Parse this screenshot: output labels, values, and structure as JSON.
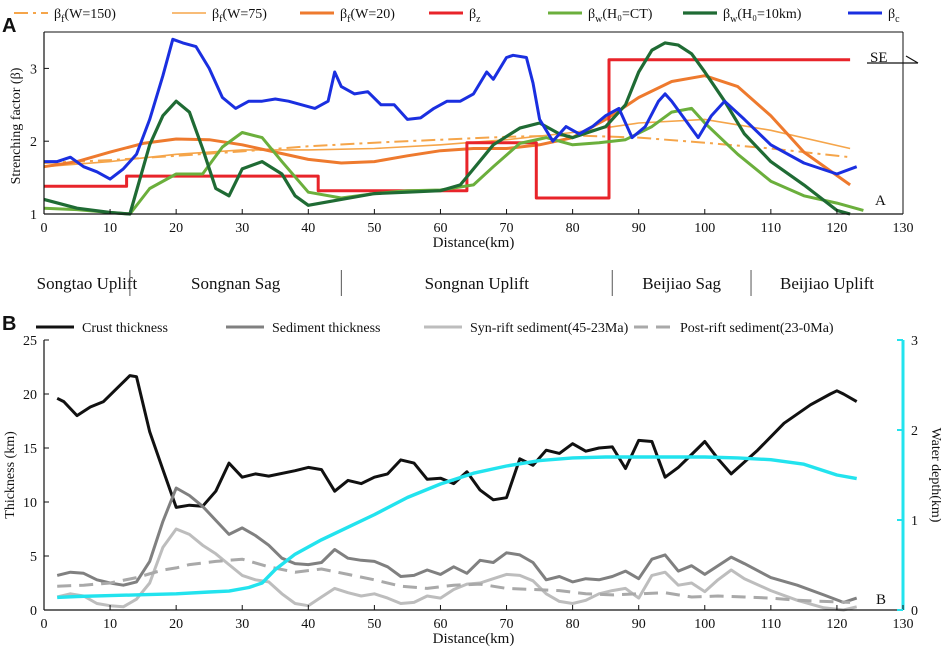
{
  "panel_a": {
    "label": "A",
    "corner_label": "A",
    "direction_label": "SE",
    "legend": [
      {
        "base": "β",
        "sub": "f",
        "rest": "(W=150)",
        "color": "#F5A54A",
        "dash": "14,5,3,5",
        "width": 2
      },
      {
        "base": "β",
        "sub": "f",
        "rest": "(W=75)",
        "color": "#F5A54A",
        "dash": "",
        "width": 1.6
      },
      {
        "base": "β",
        "sub": "f",
        "rest": "(W=20)",
        "color": "#EE7A2E",
        "dash": "",
        "width": 3
      },
      {
        "base": "β",
        "sub": "z",
        "rest": "",
        "color": "#E8242A",
        "dash": "",
        "width": 3
      },
      {
        "base": "β",
        "sub": "w",
        "rest": "(H₀=CT)",
        "color": "#6BAF3C",
        "dash": "",
        "width": 3
      },
      {
        "base": "β",
        "sub": "w",
        "rest": "(H₀=10km)",
        "color": "#1F6B34",
        "dash": "",
        "width": 3.2
      },
      {
        "base": "β",
        "sub": "c",
        "rest": "",
        "color": "#1A2FE0",
        "dash": "",
        "width": 3
      }
    ]
  },
  "regions": [
    {
      "name": "Songtao Uplift",
      "start": 0,
      "end": 13
    },
    {
      "name": "Songnan Sag",
      "start": 13,
      "end": 45
    },
    {
      "name": "Songnan Uplift",
      "start": 45,
      "end": 86
    },
    {
      "name": "Beijiao Sag",
      "start": 86,
      "end": 107
    },
    {
      "name": "Beijiao Uplift",
      "start": 107,
      "end": 130
    }
  ],
  "panel_b": {
    "label": "B",
    "corner_label": "B",
    "legend": [
      {
        "label": "Crust thickness",
        "color": "#111111",
        "dash": "",
        "width": 3
      },
      {
        "label": "Sediment  thickness",
        "color": "#808080",
        "dash": "",
        "width": 3
      },
      {
        "label": "Syn-rift sediment(45-23Ma)",
        "color": "#BDBDBD",
        "dash": "",
        "width": 3
      },
      {
        "label": "Post-rift sediment(23-0Ma)",
        "color": "#A9A9A9",
        "dash": "14,8",
        "width": 3
      }
    ]
  },
  "chart_data": [
    {
      "type": "line",
      "title": "",
      "xlabel": "Distance(km)",
      "ylabel": "Strenching factor (β)",
      "xlim": [
        0,
        130
      ],
      "ylim": [
        1,
        3.5
      ],
      "xticks": [
        0,
        10,
        20,
        30,
        40,
        50,
        60,
        70,
        80,
        90,
        100,
        110,
        120,
        130
      ],
      "yticks": [
        1,
        2,
        3
      ],
      "series": [
        {
          "name": "βf(W=150)",
          "x": [
            0,
            10,
            20,
            30,
            40,
            50,
            60,
            70,
            80,
            90,
            100,
            110,
            122
          ],
          "y": [
            1.7,
            1.74,
            1.8,
            1.86,
            1.93,
            1.98,
            2.02,
            2.06,
            2.08,
            2.05,
            1.98,
            1.9,
            1.78
          ]
        },
        {
          "name": "βf(W=75)",
          "x": [
            0,
            10,
            20,
            30,
            40,
            50,
            60,
            70,
            80,
            90,
            100,
            110,
            122
          ],
          "y": [
            1.65,
            1.72,
            1.82,
            1.88,
            1.88,
            1.9,
            1.95,
            2.02,
            2.12,
            2.25,
            2.3,
            2.15,
            1.9
          ]
        },
        {
          "name": "βf(W=20)",
          "x": [
            0,
            5,
            10,
            15,
            20,
            25,
            30,
            35,
            40,
            45,
            50,
            55,
            60,
            65,
            70,
            75,
            80,
            85,
            90,
            95,
            100,
            105,
            110,
            115,
            122
          ],
          "y": [
            1.65,
            1.72,
            1.85,
            1.97,
            2.03,
            2.02,
            1.95,
            1.85,
            1.75,
            1.7,
            1.72,
            1.8,
            1.87,
            1.9,
            1.9,
            1.95,
            2.05,
            2.3,
            2.6,
            2.82,
            2.9,
            2.75,
            2.35,
            1.85,
            1.4
          ]
        },
        {
          "name": "βz",
          "step": true,
          "x": [
            0,
            12.5,
            41.5,
            64,
            74.5,
            85.5,
            122
          ],
          "y": [
            1.38,
            1.52,
            1.32,
            1.98,
            1.22,
            3.12,
            3.12
          ]
        },
        {
          "name": "βw(H0=CT)",
          "x": [
            0,
            5,
            10,
            13,
            16,
            20,
            24,
            27,
            30,
            33,
            36,
            40,
            45,
            50,
            55,
            60,
            65,
            68,
            72,
            76,
            80,
            84,
            88,
            92,
            95,
            98,
            100,
            105,
            110,
            115,
            120,
            124
          ],
          "y": [
            1.08,
            1.06,
            1.02,
            1.0,
            1.35,
            1.55,
            1.55,
            1.92,
            2.12,
            2.05,
            1.72,
            1.3,
            1.22,
            1.28,
            1.32,
            1.33,
            1.4,
            1.65,
            1.97,
            2.05,
            1.95,
            1.98,
            2.02,
            2.2,
            2.4,
            2.45,
            2.25,
            1.82,
            1.45,
            1.25,
            1.15,
            1.05
          ]
        },
        {
          "name": "βw(H0=10km)",
          "x": [
            0,
            5,
            10,
            13,
            16,
            18,
            20,
            22,
            24,
            26,
            28,
            30,
            33,
            36,
            38,
            40,
            45,
            50,
            55,
            60,
            63,
            65,
            68,
            72,
            75,
            78,
            80,
            85,
            88,
            90,
            92,
            94,
            96,
            98,
            100,
            103,
            106,
            110,
            115,
            120,
            122
          ],
          "y": [
            1.2,
            1.08,
            1.02,
            1.0,
            1.95,
            2.35,
            2.55,
            2.4,
            1.9,
            1.35,
            1.25,
            1.62,
            1.72,
            1.55,
            1.25,
            1.12,
            1.2,
            1.28,
            1.3,
            1.32,
            1.4,
            1.62,
            1.95,
            2.18,
            2.25,
            2.1,
            2.05,
            2.2,
            2.5,
            2.95,
            3.25,
            3.35,
            3.32,
            3.2,
            2.95,
            2.55,
            2.1,
            1.72,
            1.4,
            1.05,
            1.0
          ]
        },
        {
          "name": "βc",
          "x": [
            0,
            2,
            4,
            6,
            8,
            10,
            12,
            14,
            16,
            18,
            19.5,
            21,
            23,
            25,
            27,
            29,
            31,
            33,
            35,
            37,
            39,
            41,
            43,
            44,
            45,
            47,
            49,
            51,
            53,
            55,
            57,
            59,
            61,
            63,
            65,
            67,
            68,
            70,
            71,
            73,
            74,
            75,
            77,
            79,
            81,
            83,
            85,
            87,
            89,
            91,
            93,
            94,
            95,
            97,
            99,
            101,
            103,
            106,
            110,
            115,
            120,
            123
          ],
          "y": [
            1.72,
            1.72,
            1.78,
            1.65,
            1.58,
            1.48,
            1.62,
            1.82,
            2.3,
            2.9,
            3.4,
            3.35,
            3.3,
            3.0,
            2.6,
            2.45,
            2.55,
            2.55,
            2.58,
            2.55,
            2.5,
            2.45,
            2.55,
            2.95,
            2.75,
            2.65,
            2.68,
            2.5,
            2.5,
            2.3,
            2.32,
            2.45,
            2.55,
            2.55,
            2.65,
            2.95,
            2.85,
            3.15,
            3.18,
            3.15,
            2.8,
            2.3,
            2.0,
            2.2,
            2.1,
            2.2,
            2.35,
            2.45,
            2.05,
            2.2,
            2.55,
            2.65,
            2.55,
            2.3,
            2.05,
            2.35,
            2.55,
            2.3,
            1.95,
            1.7,
            1.55,
            1.65
          ]
        }
      ]
    },
    {
      "type": "line",
      "title": "",
      "xlabel": "Distance(km)",
      "ylabel": "Thickness (km)",
      "ylabel_right": "Water depth(km)",
      "xlim": [
        0,
        130
      ],
      "ylim": [
        0,
        25
      ],
      "ylim_right": [
        0,
        3
      ],
      "xticks": [
        0,
        10,
        20,
        30,
        40,
        50,
        60,
        70,
        80,
        90,
        100,
        110,
        120,
        130
      ],
      "yticks": [
        0,
        5,
        10,
        15,
        20,
        25
      ],
      "yticks_right": [
        0,
        1,
        2,
        3
      ],
      "series": [
        {
          "name": "Crust thickness",
          "axis": "left",
          "x": [
            2,
            3,
            5,
            7,
            9,
            11,
            13,
            14,
            16,
            18,
            20,
            22,
            24,
            26,
            28,
            30,
            32,
            34,
            38,
            40,
            42,
            44,
            46,
            48,
            50,
            52,
            54,
            56,
            58,
            60,
            62,
            64,
            66,
            68,
            70,
            72,
            74,
            76,
            78,
            80,
            82,
            84,
            86,
            88,
            90,
            92,
            94,
            96,
            98,
            100,
            102,
            104,
            108,
            112,
            116,
            119,
            120,
            121,
            123
          ],
          "y": [
            19.6,
            19.3,
            18,
            18.8,
            19.3,
            20.5,
            21.7,
            21.6,
            16.5,
            13,
            9.5,
            9.7,
            9.6,
            11,
            13.6,
            12.3,
            12.6,
            12.4,
            12.9,
            13.2,
            13.0,
            11.0,
            12.0,
            11.7,
            12.3,
            12.6,
            13.9,
            13.6,
            12.1,
            12.2,
            11.7,
            12.8,
            11.1,
            10.2,
            10.4,
            14.0,
            13.4,
            14.8,
            14.5,
            15.4,
            14.7,
            15.0,
            15.1,
            13.1,
            15.7,
            15.6,
            12.3,
            13.2,
            14.4,
            15.6,
            14.0,
            12.6,
            14.8,
            17.3,
            19.0,
            20.0,
            20.3,
            20.0,
            19.3
          ]
        },
        {
          "name": "Sediment thickness",
          "axis": "left",
          "x": [
            2,
            4,
            6,
            8,
            10,
            12,
            14,
            16,
            18,
            20,
            22,
            24,
            26,
            28,
            30,
            32,
            34,
            36,
            38,
            40,
            42,
            44,
            46,
            48,
            50,
            52,
            54,
            56,
            58,
            60,
            62,
            64,
            66,
            68,
            70,
            72,
            74,
            76,
            78,
            80,
            82,
            84,
            86,
            88,
            90,
            92,
            94,
            96,
            98,
            100,
            102,
            104,
            106,
            110,
            114,
            118,
            121,
            123
          ],
          "y": [
            3.2,
            3.5,
            3.4,
            2.8,
            2.5,
            2.3,
            2.6,
            4.5,
            8.2,
            11.3,
            10.6,
            9.6,
            8.3,
            7.0,
            7.6,
            6.9,
            6.0,
            4.8,
            4.3,
            4.2,
            4.4,
            5.6,
            4.8,
            4.6,
            4.5,
            4.0,
            3.1,
            3.2,
            3.7,
            3.3,
            4.0,
            3.4,
            4.6,
            4.4,
            5.3,
            5.1,
            4.4,
            2.8,
            3.1,
            2.6,
            2.9,
            2.8,
            3.1,
            3.6,
            2.9,
            4.7,
            5.1,
            3.6,
            4.1,
            3.3,
            4.1,
            4.9,
            4.3,
            3.0,
            2.3,
            1.4,
            0.7,
            1.1
          ]
        },
        {
          "name": "Syn-rift sediment(45-23Ma)",
          "axis": "left",
          "x": [
            2,
            4,
            6,
            8,
            10,
            12,
            14,
            16,
            18,
            20,
            22,
            24,
            26,
            28,
            30,
            32,
            34,
            36,
            38,
            40,
            42,
            44,
            46,
            48,
            50,
            52,
            54,
            56,
            58,
            60,
            62,
            64,
            66,
            68,
            70,
            72,
            74,
            76,
            78,
            80,
            82,
            84,
            86,
            88,
            90,
            92,
            94,
            96,
            98,
            100,
            102,
            104,
            106,
            110,
            114,
            118,
            121,
            123
          ],
          "y": [
            1.2,
            1.5,
            1.3,
            0.6,
            0.4,
            0.3,
            1.0,
            2.5,
            5.8,
            7.5,
            7.0,
            6.0,
            5.2,
            4.2,
            3.2,
            2.8,
            2.6,
            1.5,
            0.6,
            0.4,
            1.2,
            2.0,
            1.6,
            1.3,
            1.5,
            1.1,
            0.6,
            0.7,
            1.3,
            1.1,
            1.9,
            2.4,
            2.5,
            2.9,
            3.3,
            3.2,
            2.7,
            1.5,
            0.8,
            0.6,
            0.9,
            1.5,
            1.8,
            2.0,
            1.1,
            3.2,
            3.5,
            2.3,
            2.5,
            1.7,
            2.8,
            3.7,
            2.9,
            1.8,
            0.9,
            0.2,
            0.0,
            0.3
          ]
        },
        {
          "name": "Post-rift sediment(23-0Ma)",
          "axis": "left",
          "x": [
            2,
            6,
            10,
            14,
            18,
            20,
            22,
            26,
            30,
            34,
            38,
            42,
            46,
            50,
            54,
            58,
            62,
            66,
            70,
            74,
            78,
            82,
            86,
            90,
            94,
            98,
            102,
            106,
            110,
            114,
            118,
            122
          ],
          "y": [
            2.2,
            2.3,
            2.5,
            3.0,
            3.7,
            3.9,
            4.2,
            4.5,
            4.7,
            4.0,
            3.5,
            3.8,
            3.3,
            2.8,
            2.2,
            2.0,
            2.3,
            2.4,
            2.0,
            1.9,
            1.8,
            1.5,
            1.4,
            1.5,
            1.6,
            1.2,
            1.3,
            1.2,
            1.1,
            0.9,
            0.8,
            0.7
          ]
        },
        {
          "name": "Water depth",
          "axis": "right",
          "x": [
            2,
            5,
            10,
            15,
            20,
            25,
            28,
            31,
            33,
            35,
            38,
            42,
            46,
            50,
            55,
            60,
            65,
            70,
            75,
            80,
            85,
            90,
            95,
            100,
            105,
            110,
            115,
            120,
            123
          ],
          "y": [
            0.14,
            0.15,
            0.16,
            0.17,
            0.18,
            0.2,
            0.21,
            0.25,
            0.3,
            0.45,
            0.62,
            0.78,
            0.92,
            1.06,
            1.25,
            1.4,
            1.52,
            1.6,
            1.66,
            1.69,
            1.7,
            1.7,
            1.7,
            1.7,
            1.69,
            1.67,
            1.62,
            1.5,
            1.46
          ]
        }
      ]
    }
  ]
}
